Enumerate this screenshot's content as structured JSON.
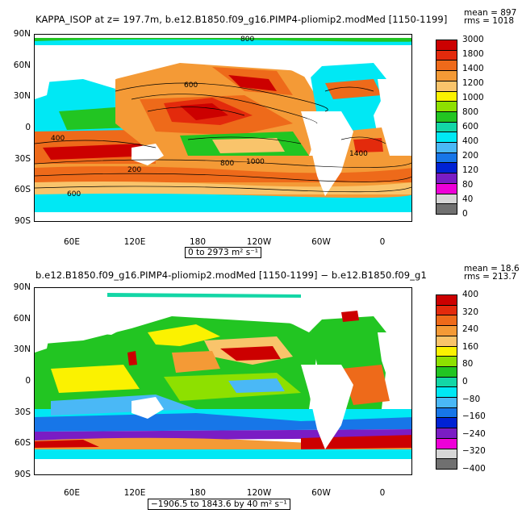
{
  "panel1": {
    "title": "KAPPA_ISOP at z= 197.7m, b.e12.B1850.f09_g16.PIMP4-pliomip2.modMed [1150-1199]",
    "mean_label": "mean = 897",
    "rms_label": "rms = 1018",
    "range_label": "0 to 2973 m² s⁻¹",
    "colorbar_labels": [
      "3000",
      "1800",
      "1400",
      "1200",
      "1000",
      "800",
      "600",
      "400",
      "200",
      "120",
      "80",
      "40",
      "0"
    ],
    "colorbar_colors": [
      "#cc0000",
      "#e32a0c",
      "#ee6a1a",
      "#f49a36",
      "#f9c46b",
      "#fbf200",
      "#8ee000",
      "#22c522",
      "#13d6a6",
      "#00e8f4",
      "#4ab8f6",
      "#1776e8",
      "#0022d4",
      "#7a1cc4",
      "#ee00d8",
      "#d6d6d6",
      "#707070"
    ],
    "contour_labels": [
      "800",
      "600",
      "400",
      "1000",
      "1400",
      "200",
      "800",
      "600"
    ]
  },
  "panel2": {
    "title": "b.e12.B1850.f09_g16.PIMP4-pliomip2.modMed [1150-1199] − b.e12.B1850.f09_g1",
    "mean_label": "mean = 18.6",
    "rms_label": "rms = 213.7",
    "range_label": "−1906.5 to 1843.6 by 40 m² s⁻¹",
    "colorbar_labels": [
      "400",
      "320",
      "240",
      "160",
      "80",
      "0",
      "−80",
      "−160",
      "−240",
      "−320",
      "−400"
    ],
    "colorbar_colors": [
      "#cc0000",
      "#e32a0c",
      "#ee6a1a",
      "#f49a36",
      "#f9c46b",
      "#fbf200",
      "#8ee000",
      "#22c522",
      "#13d6a6",
      "#00e8f4",
      "#4ab8f6",
      "#1776e8",
      "#0022d4",
      "#7a1cc4",
      "#ee00d8",
      "#d6d6d6",
      "#707070"
    ]
  },
  "axes": {
    "lat_labels": [
      "90N",
      "60N",
      "30N",
      "0",
      "30S",
      "60S",
      "90S"
    ],
    "lon_labels": [
      "60E",
      "120E",
      "180",
      "120W",
      "60W",
      "0"
    ]
  }
}
